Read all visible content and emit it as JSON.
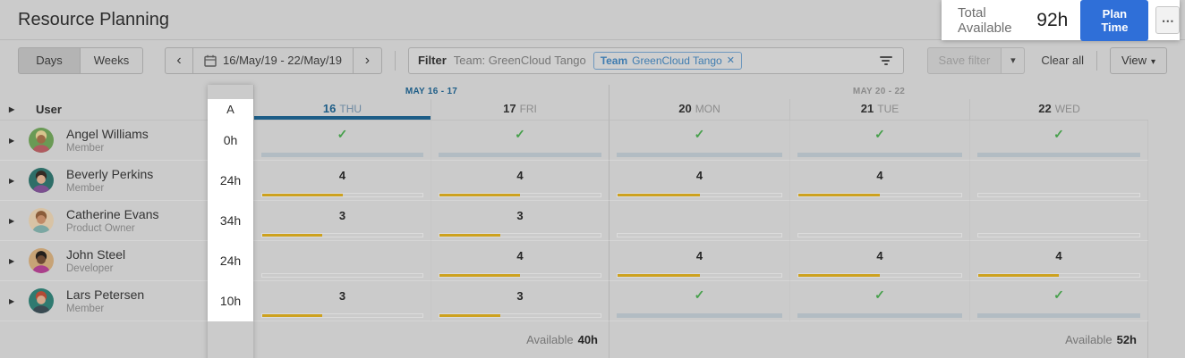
{
  "header": {
    "title": "Resource Planning",
    "total_available_label": "Total Available",
    "total_available_value": "92h",
    "plan_time_label": "Plan Time"
  },
  "toolbar": {
    "days_label": "Days",
    "weeks_label": "Weeks",
    "date_range": "16/May/19 - 22/May/19",
    "filter_label": "Filter",
    "filter_summary": "Team: GreenCloud Tango",
    "filter_tag": {
      "prefix": "Team",
      "name": "GreenCloud Tango"
    },
    "save_filter_label": "Save filter",
    "clear_all_label": "Clear all",
    "view_label": "View"
  },
  "icons": {
    "more": "⋯",
    "chevron_left": "‹",
    "chevron_right": "›",
    "caret_down": "▾",
    "close": "✕",
    "check": "✓",
    "expand": "▶"
  },
  "table": {
    "user_header": "User",
    "availability_header": "A",
    "groups": [
      {
        "label": "MAY 16 - 17",
        "days": [
          {
            "num": "16",
            "name": "THU",
            "active": true
          },
          {
            "num": "17",
            "name": "FRI",
            "active": false
          }
        ]
      },
      {
        "label": "MAY 20 - 22",
        "days": [
          {
            "num": "20",
            "name": "MON",
            "active": false
          },
          {
            "num": "21",
            "name": "TUE",
            "active": false
          },
          {
            "num": "22",
            "name": "WED",
            "active": false
          }
        ]
      }
    ],
    "rows": [
      {
        "name": "Angel Williams",
        "role": "Member",
        "availability": "0h",
        "avatar": {
          "bg": "#6a9a55",
          "hair": "#d8c58e",
          "skin": "#9c6b47",
          "shirt": "#b05a60"
        },
        "cells": [
          {
            "type": "check"
          },
          {
            "type": "check"
          },
          {
            "type": "check"
          },
          {
            "type": "check"
          },
          {
            "type": "check"
          }
        ]
      },
      {
        "name": "Beverly Perkins",
        "role": "Member",
        "availability": "24h",
        "avatar": {
          "bg": "#2e6e68",
          "hair": "#352a24",
          "skin": "#d3a98c",
          "shirt": "#7c4f8f"
        },
        "cells": [
          {
            "type": "planned",
            "value": "4",
            "pct": 50
          },
          {
            "type": "planned",
            "value": "4",
            "pct": 50
          },
          {
            "type": "planned",
            "value": "4",
            "pct": 50
          },
          {
            "type": "planned",
            "value": "4",
            "pct": 50
          },
          {
            "type": "empty"
          }
        ]
      },
      {
        "name": "Catherine Evans",
        "role": "Product Owner",
        "availability": "34h",
        "avatar": {
          "bg": "#d8c3a5",
          "hair": "#8a5c39",
          "skin": "#c08a67",
          "shirt": "#7ba7a3"
        },
        "cells": [
          {
            "type": "planned",
            "value": "3",
            "pct": 37.5
          },
          {
            "type": "planned",
            "value": "3",
            "pct": 37.5
          },
          {
            "type": "empty"
          },
          {
            "type": "empty"
          },
          {
            "type": "empty"
          }
        ]
      },
      {
        "name": "John Steel",
        "role": "Developer",
        "availability": "24h",
        "avatar": {
          "bg": "#c7a376",
          "hair": "#241f1b",
          "skin": "#6e4a34",
          "shirt": "#aa3f8c"
        },
        "cells": [
          {
            "type": "empty"
          },
          {
            "type": "planned",
            "value": "4",
            "pct": 50
          },
          {
            "type": "planned",
            "value": "4",
            "pct": 50
          },
          {
            "type": "planned",
            "value": "4",
            "pct": 50
          },
          {
            "type": "planned",
            "value": "4",
            "pct": 50
          }
        ]
      },
      {
        "name": "Lars Petersen",
        "role": "Member",
        "availability": "10h",
        "avatar": {
          "bg": "#2f7a70",
          "hair": "#b34a35",
          "skin": "#d3a98c",
          "shirt": "#3a4a52"
        },
        "cells": [
          {
            "type": "planned",
            "value": "3",
            "pct": 37.5
          },
          {
            "type": "planned",
            "value": "3",
            "pct": 37.5
          },
          {
            "type": "check"
          },
          {
            "type": "check"
          },
          {
            "type": "check"
          }
        ]
      }
    ],
    "footer": {
      "label": "Available",
      "group_totals": [
        "40h",
        "52h"
      ]
    }
  },
  "colors": {
    "accent_blue": "#2f6fd8",
    "active_day_blue": "#1d5d87",
    "tag_blue": "#3f7cb0",
    "check_green": "#46a04b",
    "bar_yellow": "#cda11e",
    "bar_full_gray": "#b2bcc3"
  }
}
